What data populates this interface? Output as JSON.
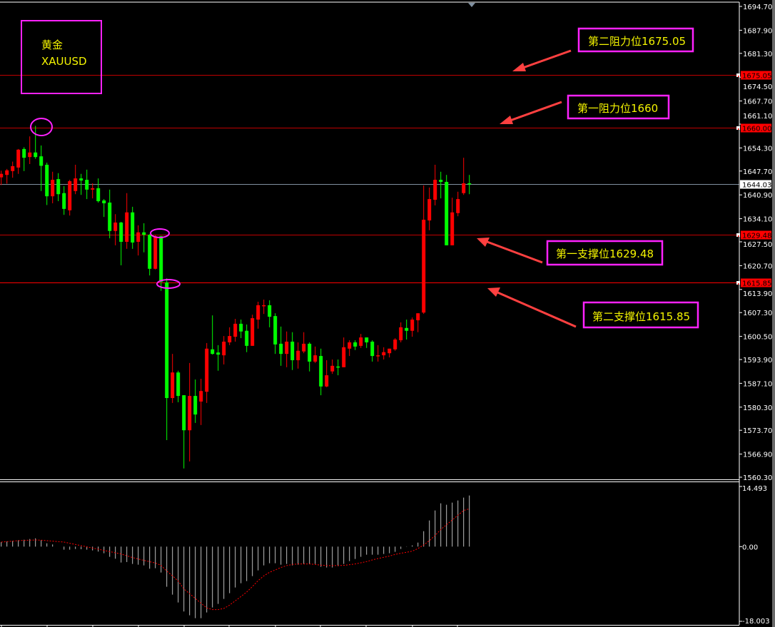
{
  "chart_data": {
    "type": "candlestick",
    "symbol_name": "黄金",
    "symbol": "XAUUSD",
    "ylim": [
      1560.3,
      1694.7
    ],
    "y_ticks": [
      "1694.70",
      "1687.90",
      "1681.30",
      "1674.50",
      "1667.70",
      "1661.10",
      "1654.30",
      "1647.70",
      "1640.90",
      "1634.10",
      "1627.50",
      "1620.70",
      "1613.90",
      "1607.30",
      "1600.50",
      "1593.90",
      "1587.10",
      "1580.30",
      "1573.70",
      "1566.90",
      "1560.30"
    ],
    "colors": {
      "up": "#ff0000",
      "down": "#00ff00",
      "level_line": "#c00000",
      "strong_level_line": "#ff0000",
      "price_line": "#8090a0",
      "annotation_box": "#ff22ff",
      "annotation_text": "#f4f400",
      "arrow": "#ff4040"
    },
    "current_price": {
      "value": 1644.03,
      "label": "1644.03"
    },
    "levels": [
      {
        "value": 1675.05,
        "tag": "1675.05",
        "note": "第二阻力位1675.05"
      },
      {
        "value": 1660.0,
        "tag": "1660.00",
        "note": "第一阻力位1660"
      },
      {
        "value": 1629.48,
        "tag": "1629.48",
        "note": "第一支撑位1629.48"
      },
      {
        "value": 1615.85,
        "tag": "1615.85",
        "note": "第二支撑位1615.85"
      }
    ],
    "ohlc_fields": [
      "open",
      "high",
      "low",
      "close"
    ],
    "candles": [
      [
        1645.9,
        1647.8,
        1643.7,
        1646.9
      ],
      [
        1646.6,
        1648.3,
        1644.1,
        1647.9
      ],
      [
        1647.7,
        1650.4,
        1645.8,
        1649.1
      ],
      [
        1648.7,
        1654.0,
        1646.9,
        1653.8
      ],
      [
        1654.0,
        1654.5,
        1647.7,
        1651.5
      ],
      [
        1651.7,
        1657.6,
        1649.7,
        1653.0
      ],
      [
        1653.0,
        1660.6,
        1651.2,
        1651.7
      ],
      [
        1651.9,
        1655.0,
        1642.0,
        1649.2
      ],
      [
        1649.5,
        1650.1,
        1638.0,
        1640.5
      ],
      [
        1640.5,
        1647.5,
        1638.5,
        1645.2
      ],
      [
        1645.4,
        1647.1,
        1639.1,
        1641.1
      ],
      [
        1641.4,
        1643.4,
        1635.2,
        1636.9
      ],
      [
        1636.5,
        1645.2,
        1635.0,
        1644.8
      ],
      [
        1642.0,
        1649.5,
        1641.1,
        1645.6
      ],
      [
        1645.6,
        1646.9,
        1640.9,
        1645.0
      ],
      [
        1645.2,
        1648.1,
        1639.7,
        1642.4
      ],
      [
        1642.4,
        1644.2,
        1639.9,
        1642.8
      ],
      [
        1642.8,
        1645.6,
        1638.7,
        1639.1
      ],
      [
        1639.3,
        1639.7,
        1634.6,
        1638.5
      ],
      [
        1638.7,
        1642.4,
        1628.5,
        1630.6
      ],
      [
        1630.6,
        1635.4,
        1626.5,
        1633.0
      ],
      [
        1633.0,
        1633.2,
        1620.8,
        1627.5
      ],
      [
        1627.5,
        1641.4,
        1625.5,
        1635.9
      ],
      [
        1635.9,
        1637.5,
        1625.5,
        1627.3
      ],
      [
        1627.5,
        1632.2,
        1623.6,
        1630.2
      ],
      [
        1630.2,
        1632.8,
        1624.5,
        1629.5
      ],
      [
        1629.5,
        1629.7,
        1617.9,
        1619.8
      ],
      [
        1619.8,
        1629.5,
        1619.6,
        1629.1
      ],
      [
        1629.1,
        1629.2,
        1613.5,
        1616.1
      ],
      [
        1615.9,
        1617.1,
        1570.9,
        1582.9
      ],
      [
        1582.9,
        1595.5,
        1581.5,
        1590.2
      ],
      [
        1590.2,
        1590.7,
        1581.7,
        1583.5
      ],
      [
        1583.7,
        1583.7,
        1562.8,
        1573.7
      ],
      [
        1573.7,
        1592.9,
        1564.8,
        1583.5
      ],
      [
        1583.5,
        1588.2,
        1575.8,
        1578.2
      ],
      [
        1581.9,
        1588.4,
        1575.2,
        1584.9
      ],
      [
        1584.7,
        1598.6,
        1581.5,
        1597.0
      ],
      [
        1596.8,
        1606.5,
        1595.3,
        1595.5
      ],
      [
        1595.9,
        1598.0,
        1590.7,
        1595.3
      ],
      [
        1595.1,
        1600.6,
        1592.5,
        1599.0
      ],
      [
        1598.8,
        1603.1,
        1598.0,
        1600.6
      ],
      [
        1600.4,
        1605.5,
        1599.0,
        1604.1
      ],
      [
        1604.1,
        1605.3,
        1600.0,
        1601.9
      ],
      [
        1602.1,
        1603.9,
        1596.0,
        1597.8
      ],
      [
        1597.8,
        1606.7,
        1597.8,
        1605.7
      ],
      [
        1605.3,
        1610.4,
        1602.7,
        1609.4
      ],
      [
        1609.2,
        1611.0,
        1606.9,
        1609.4
      ],
      [
        1609.4,
        1610.8,
        1603.1,
        1606.1
      ],
      [
        1606.3,
        1607.1,
        1595.5,
        1598.2
      ],
      [
        1598.4,
        1603.3,
        1592.1,
        1595.5
      ],
      [
        1595.5,
        1601.9,
        1591.7,
        1599.0
      ],
      [
        1599.0,
        1601.7,
        1590.9,
        1593.7
      ],
      [
        1593.7,
        1598.8,
        1591.3,
        1596.4
      ],
      [
        1596.2,
        1601.7,
        1595.7,
        1598.4
      ],
      [
        1598.4,
        1598.8,
        1590.5,
        1593.3
      ],
      [
        1593.3,
        1597.6,
        1592.9,
        1595.1
      ],
      [
        1594.9,
        1597.0,
        1583.7,
        1586.2
      ],
      [
        1586.2,
        1593.7,
        1586.0,
        1589.4
      ],
      [
        1590.5,
        1593.9,
        1589.8,
        1592.1
      ],
      [
        1591.9,
        1593.9,
        1589.4,
        1591.7
      ],
      [
        1591.7,
        1600.2,
        1591.7,
        1597.4
      ],
      [
        1597.0,
        1599.4,
        1594.9,
        1598.8
      ],
      [
        1598.8,
        1599.4,
        1596.6,
        1597.6
      ],
      [
        1597.8,
        1601.2,
        1597.2,
        1600.2
      ],
      [
        1600.2,
        1600.2,
        1597.2,
        1598.8
      ],
      [
        1599.0,
        1599.4,
        1593.3,
        1594.9
      ],
      [
        1594.9,
        1598.0,
        1593.3,
        1595.1
      ],
      [
        1595.1,
        1597.4,
        1593.9,
        1596.0
      ],
      [
        1595.7,
        1597.0,
        1594.5,
        1597.0
      ],
      [
        1596.8,
        1600.0,
        1596.4,
        1599.6
      ],
      [
        1599.4,
        1604.5,
        1598.8,
        1603.1
      ],
      [
        1602.9,
        1605.3,
        1599.6,
        1602.1
      ],
      [
        1602.1,
        1605.9,
        1600.4,
        1605.3
      ],
      [
        1605.1,
        1607.1,
        1601.7,
        1607.1
      ],
      [
        1607.3,
        1643.6,
        1606.9,
        1633.8
      ],
      [
        1633.6,
        1643.0,
        1630.8,
        1639.7
      ],
      [
        1639.5,
        1649.5,
        1637.9,
        1645.2
      ],
      [
        1645.2,
        1647.5,
        1639.9,
        1644.6
      ],
      [
        1644.6,
        1646.6,
        1626.5,
        1626.5
      ],
      [
        1626.5,
        1640.1,
        1626.5,
        1635.9
      ],
      [
        1635.7,
        1641.8,
        1634.8,
        1639.7
      ],
      [
        1641.4,
        1651.5,
        1640.9,
        1644.2
      ],
      [
        1644.2,
        1646.6,
        1641.1,
        1644.0
      ]
    ],
    "macd": {
      "ylim": [
        -18.003,
        14.493
      ],
      "y_ticks": [
        "14.493",
        "0.00",
        "-18.003"
      ],
      "histogram": [
        1.09,
        1.26,
        1.38,
        1.55,
        1.66,
        1.83,
        2.0,
        1.55,
        0.8,
        0.52,
        0.0,
        -0.74,
        -0.74,
        -0.57,
        -0.63,
        -0.74,
        -0.92,
        -1.2,
        -1.6,
        -2.46,
        -2.92,
        -3.84,
        -3.72,
        -4.18,
        -4.36,
        -4.53,
        -5.33,
        -5.21,
        -6.25,
        -9.68,
        -11.58,
        -13.47,
        -15.64,
        -16.56,
        -17.25,
        -17.25,
        -15.87,
        -14.67,
        -13.81,
        -12.61,
        -11.23,
        -9.86,
        -8.83,
        -8.31,
        -7.11,
        -5.73,
        -4.53,
        -4.01,
        -4.01,
        -4.36,
        -4.18,
        -4.53,
        -4.36,
        -4.18,
        -4.18,
        -4.18,
        -4.87,
        -5.04,
        -5.04,
        -4.7,
        -4.18,
        -3.5,
        -2.98,
        -2.46,
        -1.95,
        -1.95,
        -1.95,
        -1.78,
        -1.6,
        -1.26,
        -0.57,
        0.06,
        0.29,
        0.97,
        3.72,
        6.3,
        8.71,
        10.43,
        10.09,
        10.6,
        11.12,
        11.81,
        12.32
      ],
      "signal": [
        1.09,
        1.2,
        1.32,
        1.43,
        1.5,
        1.55,
        1.6,
        1.55,
        1.43,
        1.32,
        1.2,
        1.09,
        0.8,
        0.52,
        0.23,
        -0.06,
        -0.35,
        -0.63,
        -0.92,
        -1.2,
        -1.49,
        -1.78,
        -2.21,
        -2.64,
        -2.98,
        -3.32,
        -3.64,
        -3.95,
        -4.53,
        -5.9,
        -7.05,
        -8.31,
        -10.2,
        -11.35,
        -12.5,
        -13.64,
        -14.79,
        -15.19,
        -15.19,
        -14.9,
        -14.1,
        -13.07,
        -12.03,
        -10.95,
        -9.63,
        -8.2,
        -7.05,
        -6.19,
        -5.62,
        -5.04,
        -4.58,
        -4.3,
        -4.18,
        -4.18,
        -4.18,
        -4.3,
        -4.47,
        -4.58,
        -4.58,
        -4.58,
        -4.53,
        -4.36,
        -4.18,
        -3.9,
        -3.61,
        -3.21,
        -2.87,
        -2.58,
        -2.29,
        -1.89,
        -1.6,
        -1.38,
        -1.09,
        -0.46,
        0.4,
        1.43,
        2.69,
        4.13,
        5.27,
        6.42,
        7.56,
        8.71,
        9.11
      ],
      "colors": {
        "histogram": "#c0c0c0",
        "signal": "#ff0000"
      }
    }
  }
}
